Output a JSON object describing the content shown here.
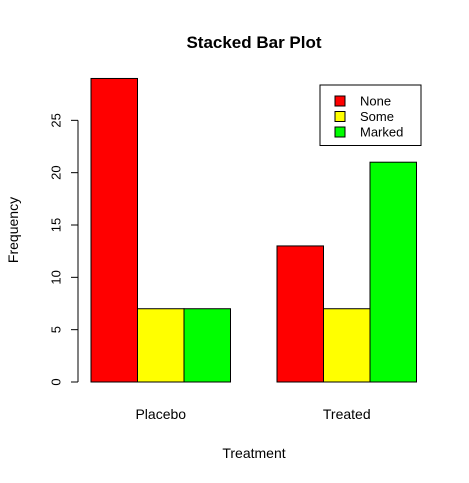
{
  "chart_data": {
    "type": "bar",
    "layout": "grouped",
    "title": "Stacked Bar Plot",
    "xlabel": "Treatment",
    "ylabel": "Frequency",
    "categories": [
      "Placebo",
      "Treated"
    ],
    "series": [
      {
        "name": "None",
        "color": "#ff0000",
        "values": [
          29,
          13
        ]
      },
      {
        "name": "Some",
        "color": "#ffff00",
        "values": [
          7,
          7
        ]
      },
      {
        "name": "Marked",
        "color": "#00ff00",
        "values": [
          7,
          21
        ]
      }
    ],
    "yticks": [
      0,
      5,
      10,
      15,
      20,
      25
    ],
    "ylim": [
      0,
      30
    ],
    "grid": false,
    "legend_position": "top-right"
  }
}
